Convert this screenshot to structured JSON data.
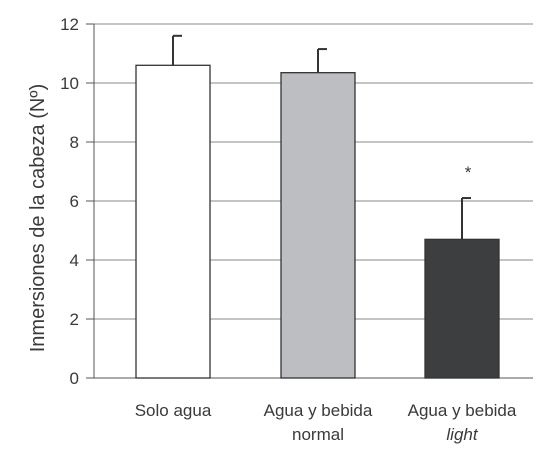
{
  "chart_data": {
    "type": "bar",
    "title": "",
    "xlabel": "",
    "ylabel": "Inmersiones de la cabeza (Nº)",
    "ylim": [
      0,
      12
    ],
    "yticks": [
      0,
      2,
      4,
      6,
      8,
      10,
      12
    ],
    "grid": "horizontal",
    "categories": [
      {
        "line1": "Solo agua",
        "line2": "",
        "line2_italic": false
      },
      {
        "line1": "Agua y bebida",
        "line2": "normal",
        "line2_italic": false
      },
      {
        "line1": "Agua y bebida",
        "line2": "light",
        "line2_italic": true
      }
    ],
    "values": [
      10.6,
      10.35,
      4.7
    ],
    "errors": [
      1.0,
      0.8,
      1.4
    ],
    "colors": [
      "#ffffff",
      "#bdbec2",
      "#3d3e40"
    ],
    "annotations": [
      "",
      "",
      "*"
    ]
  }
}
